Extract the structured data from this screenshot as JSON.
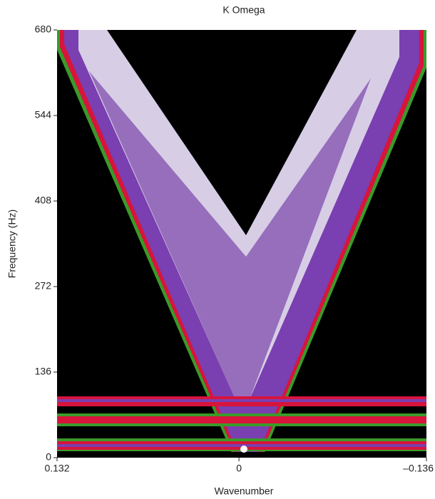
{
  "chart_data": {
    "type": "heatmap",
    "title": "K Omega",
    "x_label": "Wavenumber",
    "y_label": "Frequency (Hz)",
    "xlim": [
      0.132,
      -0.136
    ],
    "xticks": [
      0.132,
      0,
      {
        "value": -0.136,
        "label": "–0.136"
      }
    ],
    "ylim": [
      0,
      680
    ],
    "yticks": [
      0,
      136,
      272,
      408,
      544,
      680
    ]
  }
}
